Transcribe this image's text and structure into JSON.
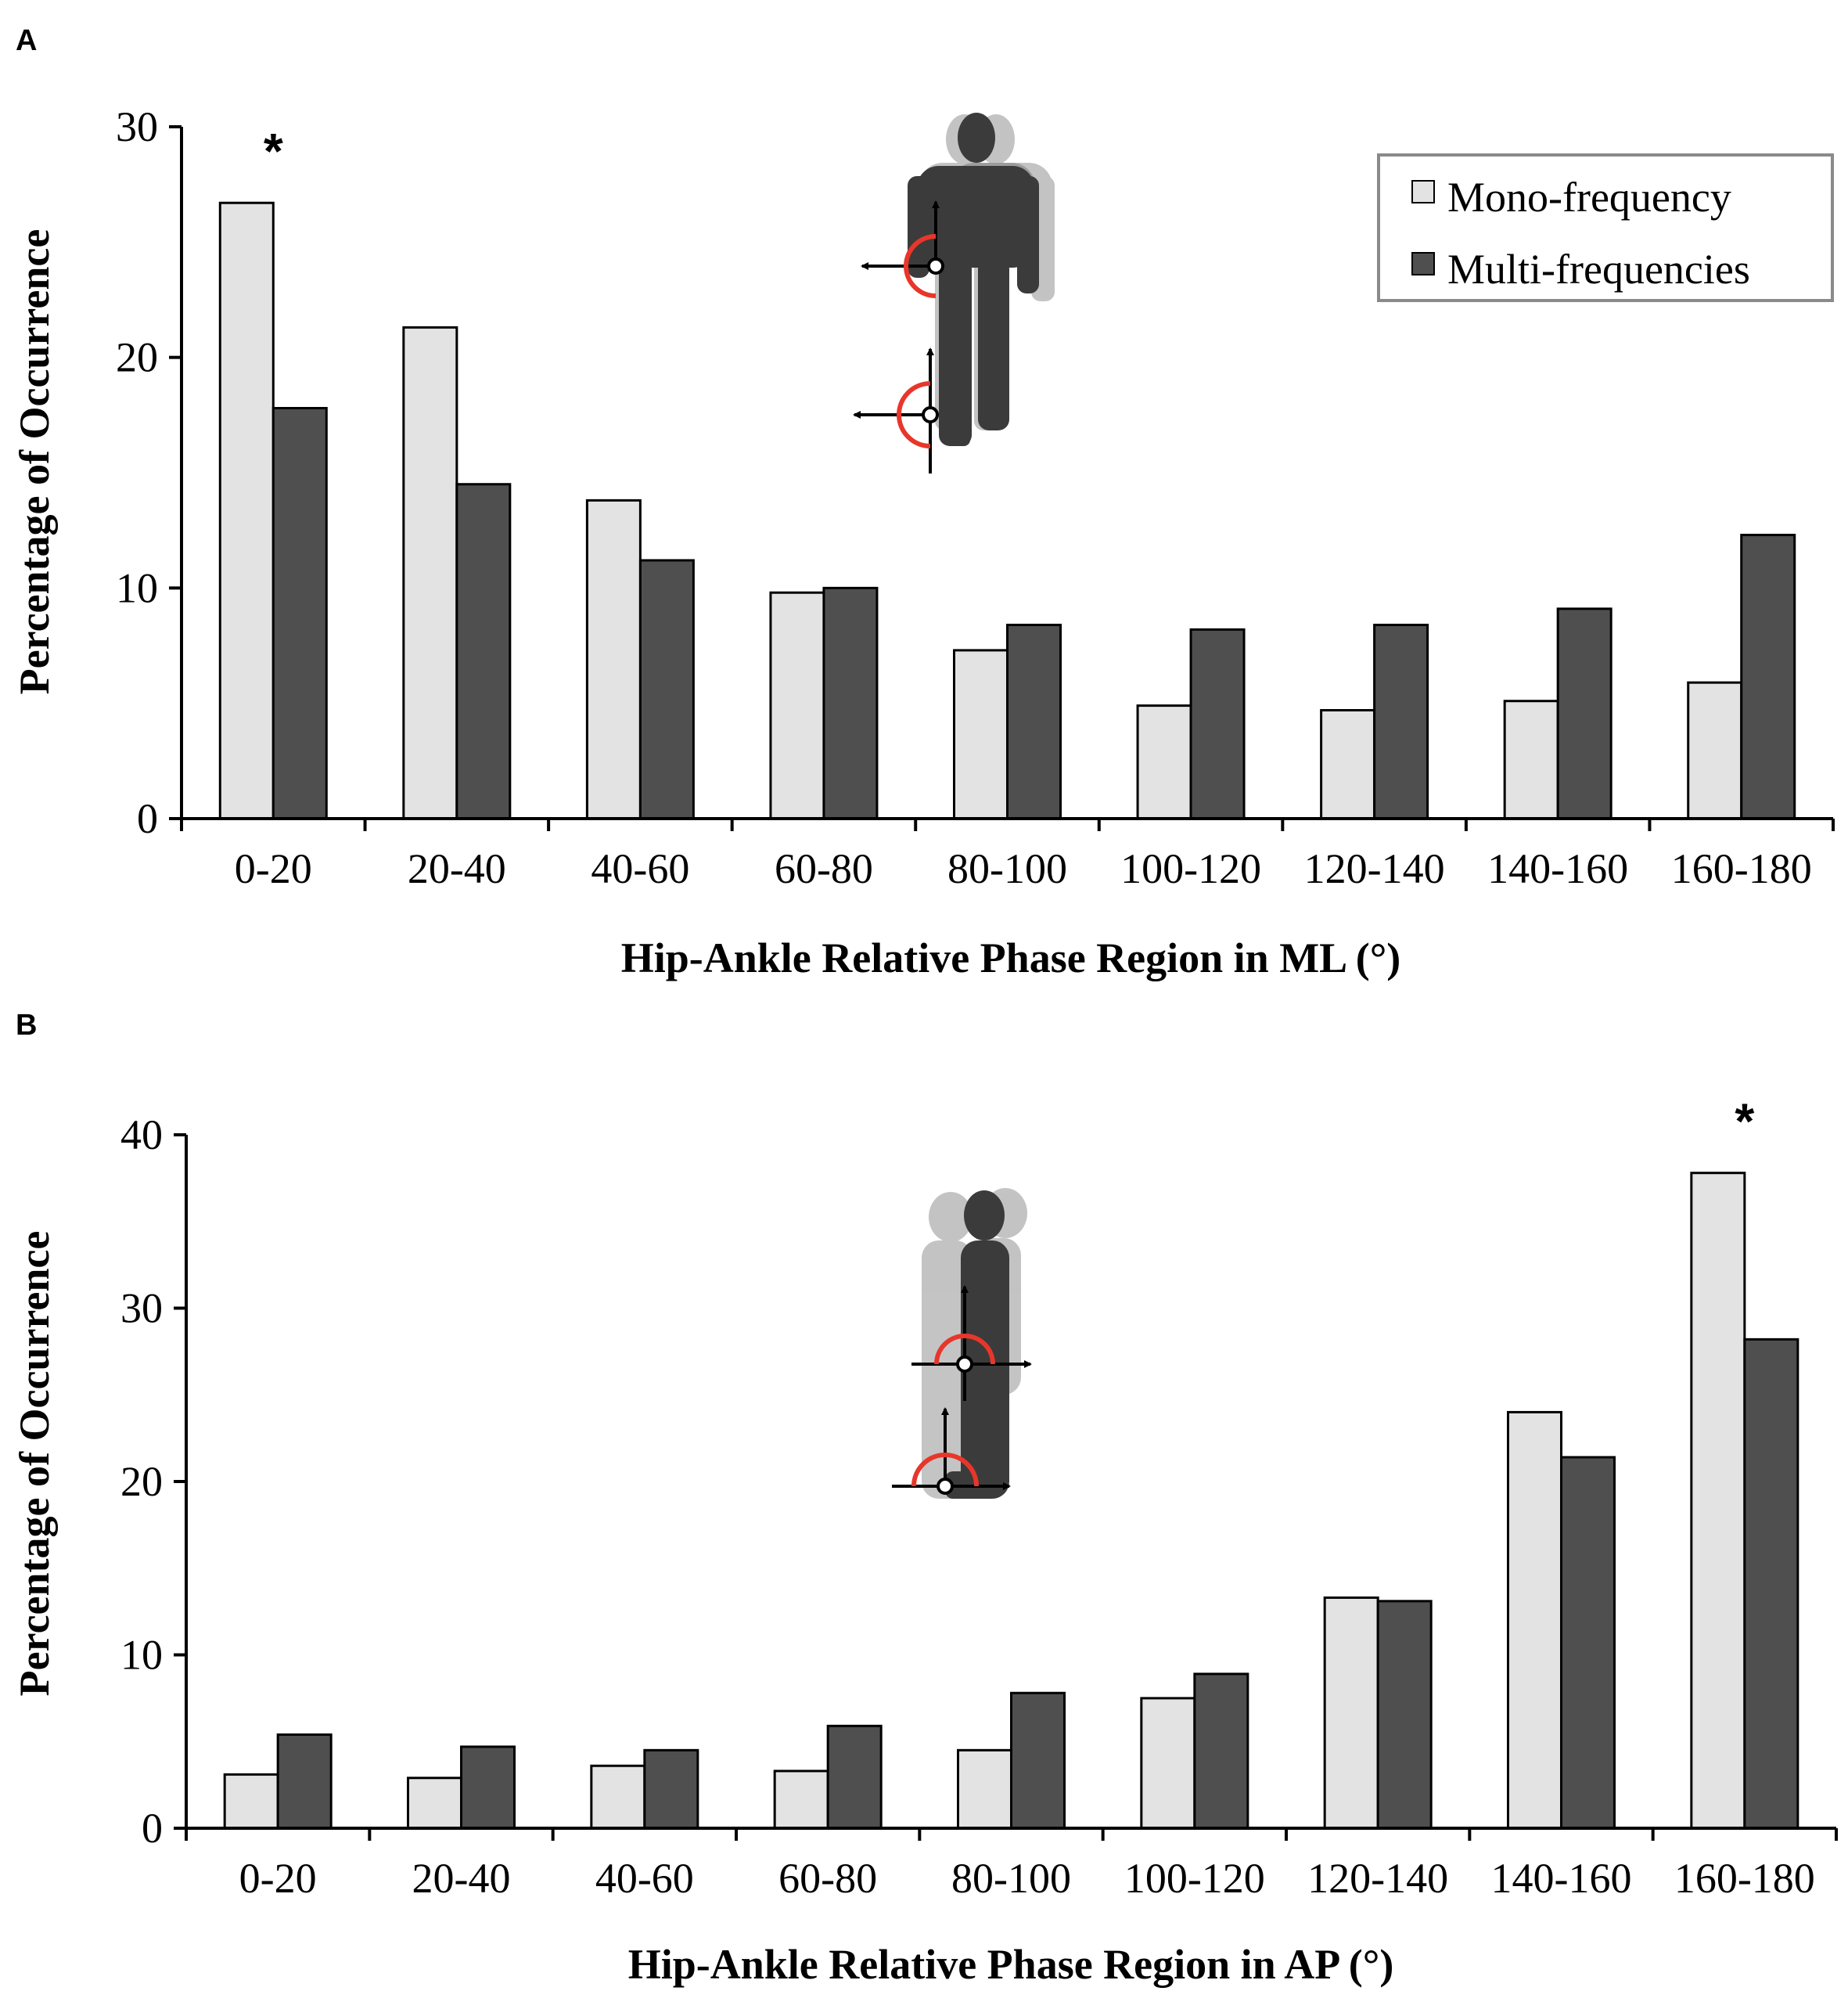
{
  "colors": {
    "mono": "#e3e3e3",
    "multi": "#4f4f4f",
    "axis": "#000000",
    "legend_border": "#8a8a8a",
    "phase_arc": "#e8362a"
  },
  "legend": {
    "mono_label": "Mono-frequency",
    "multi_label": "Multi-frequencies"
  },
  "chart_data": [
    {
      "panel": "A",
      "type": "bar",
      "title": "",
      "ylabel": "Percentage of Occurrence",
      "xlabel": "Hip-Ankle Relative Phase Region in ML (°)",
      "ylim": [
        0,
        30
      ],
      "yticks": [
        0,
        10,
        20,
        30
      ],
      "categories": [
        "0-20",
        "20-40",
        "40-60",
        "60-80",
        "80-100",
        "100-120",
        "120-140",
        "140-160",
        "160-180"
      ],
      "series": [
        {
          "name": "Mono-frequency",
          "values": [
            26.7,
            21.3,
            13.8,
            9.8,
            7.3,
            4.9,
            4.7,
            5.1,
            5.9
          ]
        },
        {
          "name": "Multi-frequencies",
          "values": [
            17.8,
            14.5,
            11.2,
            10.0,
            8.4,
            8.2,
            8.4,
            9.1,
            12.3
          ]
        }
      ],
      "significance": [
        {
          "category_index": 0,
          "mark": "*"
        }
      ],
      "grid": false,
      "legend_position": "top-right",
      "illustration": "frontal-view-figure"
    },
    {
      "panel": "B",
      "type": "bar",
      "title": "",
      "ylabel": "Percentage of Occurrence",
      "xlabel": "Hip-Ankle Relative Phase Region in AP (°)",
      "ylim": [
        0,
        40
      ],
      "yticks": [
        0,
        10,
        20,
        30,
        40
      ],
      "categories": [
        "0-20",
        "20-40",
        "40-60",
        "60-80",
        "80-100",
        "100-120",
        "120-140",
        "140-160",
        "160-180"
      ],
      "series": [
        {
          "name": "Mono-frequency",
          "values": [
            3.1,
            2.9,
            3.6,
            3.3,
            4.5,
            7.5,
            13.3,
            24.0,
            37.8
          ]
        },
        {
          "name": "Multi-frequencies",
          "values": [
            5.4,
            4.7,
            4.5,
            5.9,
            7.8,
            8.9,
            13.1,
            21.4,
            28.2
          ]
        }
      ],
      "significance": [
        {
          "category_index": 8,
          "mark": "*"
        }
      ],
      "grid": false,
      "legend_position": "none",
      "illustration": "sagittal-view-figure"
    }
  ]
}
